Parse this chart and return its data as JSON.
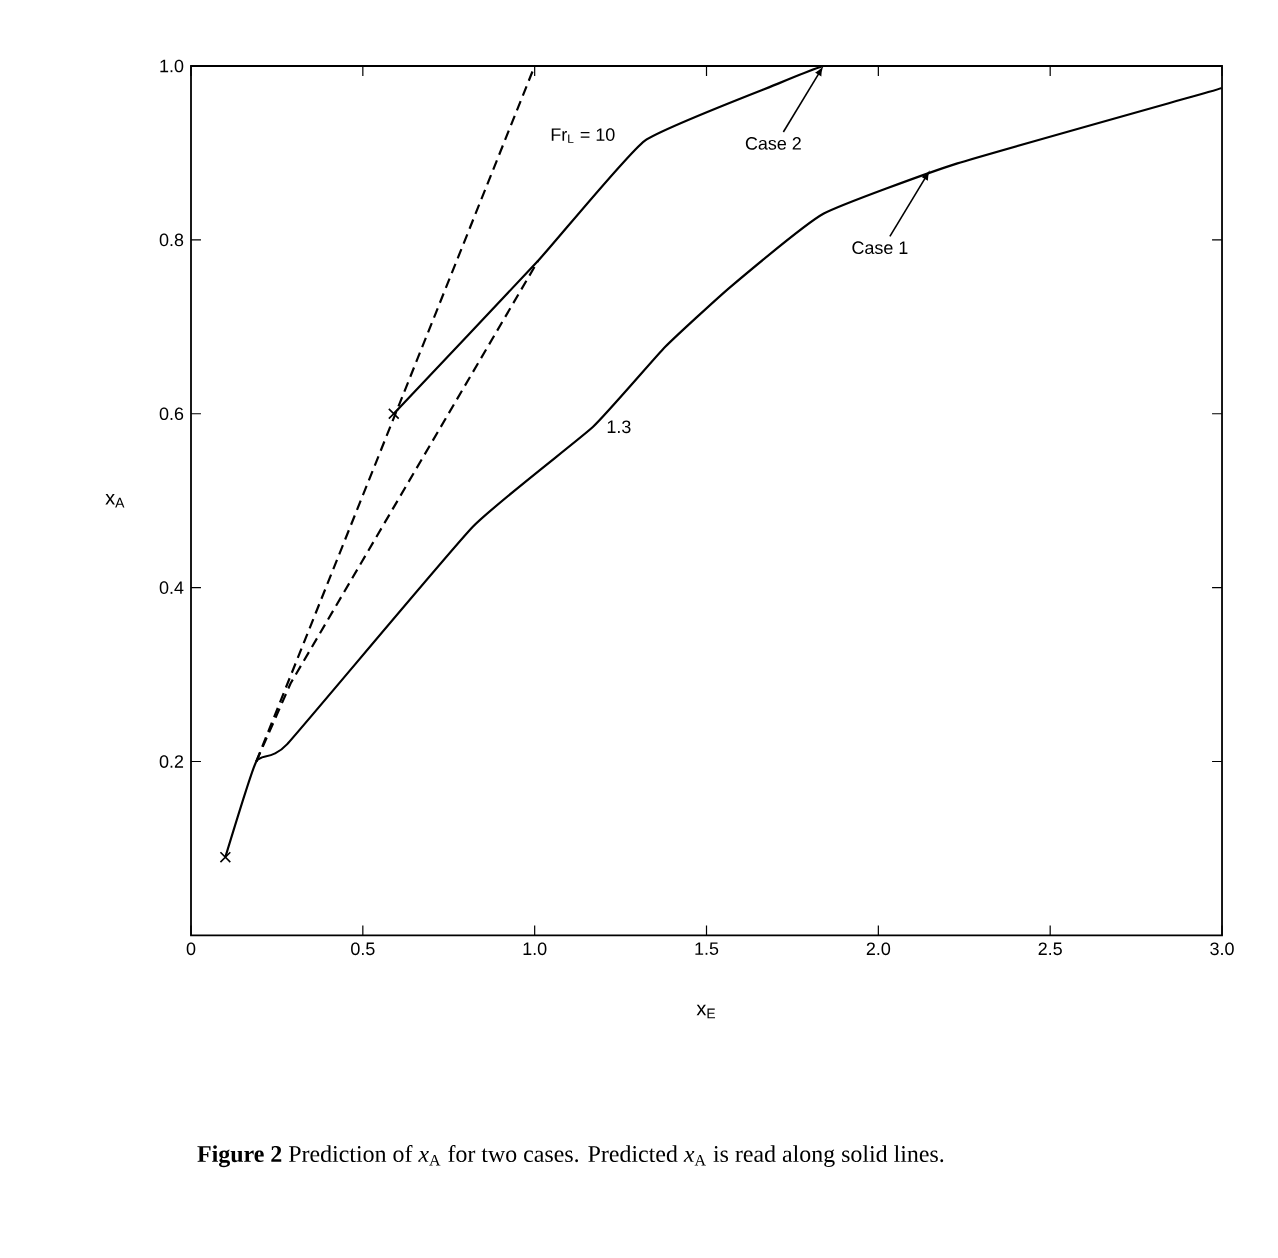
{
  "chart_data": {
    "type": "line",
    "xlabel": "x$_{E}$",
    "ylabel": "x$_{A}$",
    "xlim": [
      0,
      3.0
    ],
    "ylim": [
      0,
      1.0
    ],
    "xticks": [
      0,
      0.5,
      {
        "value": 1,
        "label": "1.0"
      },
      1.5,
      {
        "value": 2,
        "label": "2.0"
      },
      2.5,
      {
        "value": 3,
        "label": "3.0"
      }
    ],
    "yticks": [
      0.2,
      0.4,
      0.6,
      0.8,
      {
        "value": 1,
        "label": "1.0"
      }
    ],
    "grid": false,
    "series": [
      {
        "color": "#000000",
        "line_style": "solid",
        "x": [
          0.1,
          0.19,
          0.28,
          0.82,
          1.17,
          1.38,
          1.57,
          1.84,
          2.23,
          2.96,
          3.0
        ],
        "values": [
          0.09,
          0.2,
          0.22,
          0.47,
          0.585,
          0.677,
          0.746,
          0.83,
          0.888,
          0.97,
          0.975
        ]
      },
      {
        "color": "#000000",
        "line_style": "solid",
        "x": [
          0.59,
          1.01,
          1.32,
          1.71,
          1.84,
          1.88
        ],
        "values": [
          0.6,
          0.776,
          0.914,
          0.98,
          1.0,
          1.0
        ]
      },
      {
        "color": "#000000",
        "line_style": "dashed",
        "x": [
          0.19,
          1.0
        ],
        "values": [
          0.2,
          1.0
        ]
      },
      {
        "color": "#000000",
        "line_style": "dashed",
        "x": [
          0.19,
          0.29,
          1.01
        ],
        "values": [
          0.2,
          0.29,
          0.776
        ]
      },
      {
        "type": "scatter",
        "marker": "cross",
        "color": "#000000",
        "x": [
          0.1,
          0.59
        ],
        "values": [
          0.09,
          0.6
        ]
      }
    ],
    "annotations": [
      {
        "text": "Case 1",
        "x": 2.15,
        "y": 0.88
      },
      {
        "text": "Case 2",
        "x": 1.84,
        "y": 1.0
      },
      "Fr$_{L}$ = 10",
      "1.3",
      "**Figure 2** Prediction of *x*$_{A}$ for two cases. Predicted *x*$_{A}$ is read along solid lines."
    ]
  }
}
